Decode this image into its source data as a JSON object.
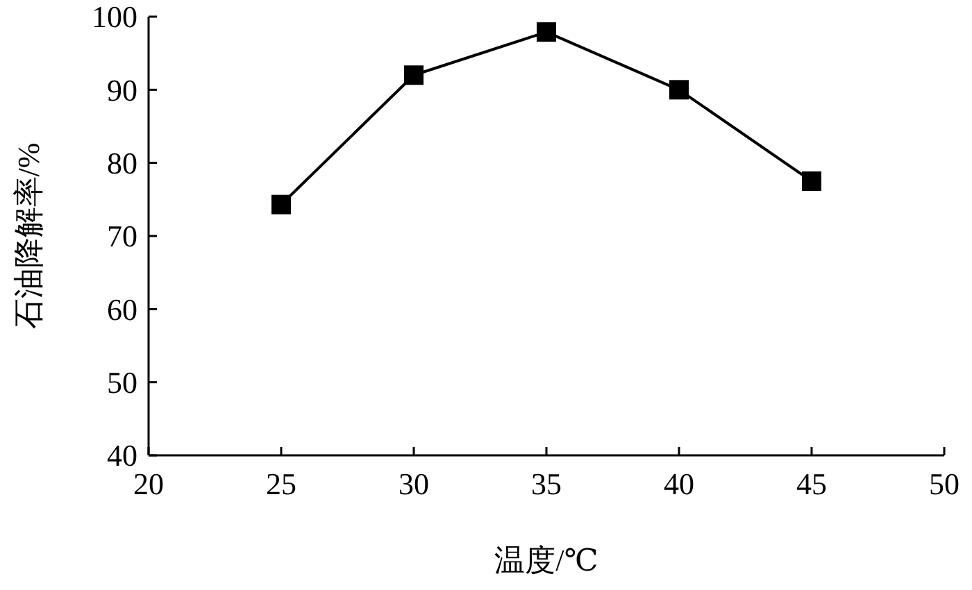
{
  "chart_data": {
    "type": "line",
    "xlabel": "温度/℃",
    "ylabel": "石油降解率/%",
    "x": [
      25,
      30,
      35,
      40,
      45
    ],
    "series": [
      {
        "color": "#000000",
        "values": [
          74.3,
          92,
          97.9,
          90,
          77.5
        ]
      }
    ],
    "xlim": [
      20,
      50
    ],
    "xticks": [
      20,
      25,
      30,
      35,
      40,
      45,
      50
    ],
    "ylim": [
      40,
      100
    ],
    "yticks": [
      40,
      50,
      60,
      70,
      80,
      90,
      100
    ],
    "marker": "square",
    "line_style": "solid",
    "grid": false
  }
}
